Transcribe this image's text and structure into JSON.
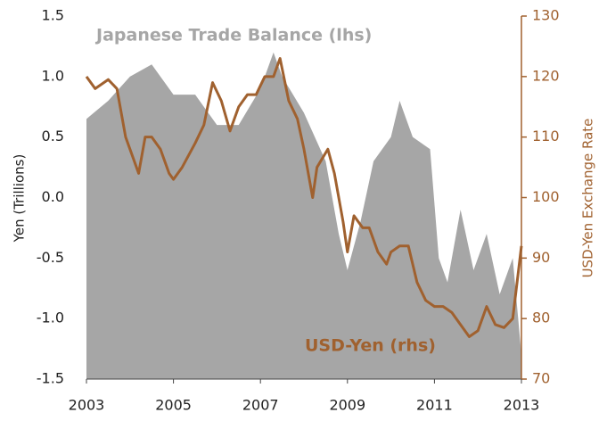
{
  "chart_data": {
    "type": "line",
    "y_label": "Yen (Trillions)",
    "y2_label": "USD-Yen  Exchange Rate",
    "xlim": [
      2003,
      2013
    ],
    "xticks": [
      2003,
      2005,
      2007,
      2009,
      2011,
      2013
    ],
    "ylim": [
      -1.5,
      1.5
    ],
    "yticks": [
      {
        "value": -1.5,
        "label": "-1.5"
      },
      {
        "value": -1,
        "label": "-1.0"
      },
      {
        "value": -0.5,
        "label": "-0.5"
      },
      {
        "value": 0,
        "label": "0.0"
      },
      {
        "value": 0.5,
        "label": "0.5"
      },
      {
        "value": 1,
        "label": "1.0"
      },
      {
        "value": 1.5,
        "label": "1.5"
      }
    ],
    "y2lim": [
      70,
      130
    ],
    "y2ticks": [
      70,
      80,
      90,
      100,
      110,
      120,
      130
    ],
    "series": [
      {
        "name": "Japanese Trade Balance (lhs)",
        "type": "area",
        "color": "#a6a6a6",
        "x": [
          2003,
          2003.5,
          2004,
          2004.5,
          2005,
          2005.5,
          2006,
          2006.5,
          2007,
          2007.3,
          2007.5,
          2008,
          2008.5,
          2008.8,
          2009,
          2009.3,
          2009.6,
          2010,
          2010.2,
          2010.5,
          2010.9,
          2011.1,
          2011.3,
          2011.6,
          2011.9,
          2012.2,
          2012.5,
          2012.8,
          2013
        ],
        "values": [
          0.65,
          0.8,
          1.0,
          1.1,
          0.85,
          0.85,
          0.6,
          0.6,
          0.9,
          1.2,
          1.0,
          0.7,
          0.3,
          -0.3,
          -0.6,
          -0.2,
          0.3,
          0.5,
          0.8,
          0.5,
          0.4,
          -0.5,
          -0.7,
          -0.1,
          -0.6,
          -0.3,
          -0.8,
          -0.5,
          -1.3
        ]
      },
      {
        "name": "USD-Yen (rhs)",
        "type": "line",
        "axis": "y2",
        "color": "#a0612f",
        "x": [
          2003,
          2003.2,
          2003.5,
          2003.7,
          2003.9,
          2004.1,
          2004.2,
          2004.35,
          2004.5,
          2004.7,
          2004.9,
          2005,
          2005.2,
          2005.5,
          2005.7,
          2005.9,
          2006.1,
          2006.3,
          2006.5,
          2006.7,
          2006.9,
          2007.1,
          2007.3,
          2007.45,
          2007.65,
          2007.85,
          2008,
          2008.2,
          2008.3,
          2008.55,
          2008.7,
          2008.9,
          2009,
          2009.15,
          2009.35,
          2009.5,
          2009.7,
          2009.9,
          2010,
          2010.2,
          2010.4,
          2010.6,
          2010.8,
          2011,
          2011.2,
          2011.4,
          2011.6,
          2011.8,
          2012,
          2012.2,
          2012.4,
          2012.6,
          2012.8,
          2013
        ],
        "values": [
          120,
          118,
          119.5,
          118,
          110,
          106,
          104,
          110,
          110,
          108,
          104,
          103,
          105,
          109,
          112,
          119,
          116,
          111,
          115,
          117,
          117,
          120,
          120,
          123,
          116,
          113,
          108,
          100,
          105,
          108,
          104,
          96,
          91,
          97,
          95,
          95,
          91,
          89,
          91,
          92,
          92,
          86,
          83,
          82,
          82,
          81,
          79,
          77,
          78,
          82,
          79,
          78.5,
          80,
          92
        ]
      }
    ]
  }
}
